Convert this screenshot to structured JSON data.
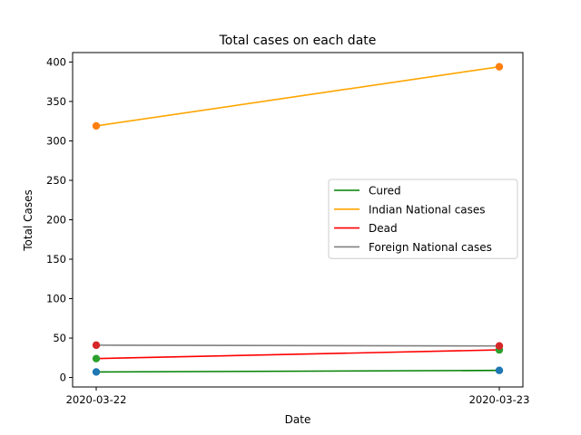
{
  "chart_data": {
    "type": "line",
    "title": "Total cases on each date",
    "xlabel": "Date",
    "ylabel": "Total Cases",
    "categories": [
      "2020-03-22",
      "2020-03-23"
    ],
    "ylim": [
      -12,
      412
    ],
    "yticks": [
      0,
      50,
      100,
      150,
      200,
      250,
      300,
      350,
      400
    ],
    "grid": false,
    "legend_position": "center-right",
    "series": [
      {
        "name": "Cured",
        "values": [
          7,
          9
        ],
        "color": "#008000"
      },
      {
        "name": "Indian National cases",
        "values": [
          319,
          394
        ],
        "color": "#ffa500"
      },
      {
        "name": "Dead",
        "values": [
          24,
          35
        ],
        "color": "#ff0000"
      },
      {
        "name": "Foreign National cases",
        "values": [
          41,
          40
        ],
        "color": "#808080"
      }
    ],
    "scatter_series": [
      {
        "values": [
          7,
          9
        ],
        "color": "#1f77b4"
      },
      {
        "values": [
          319,
          394
        ],
        "color": "#ff7f0e"
      },
      {
        "values": [
          24,
          35
        ],
        "color": "#2ca02c"
      },
      {
        "values": [
          41,
          40
        ],
        "color": "#d62728"
      }
    ]
  }
}
